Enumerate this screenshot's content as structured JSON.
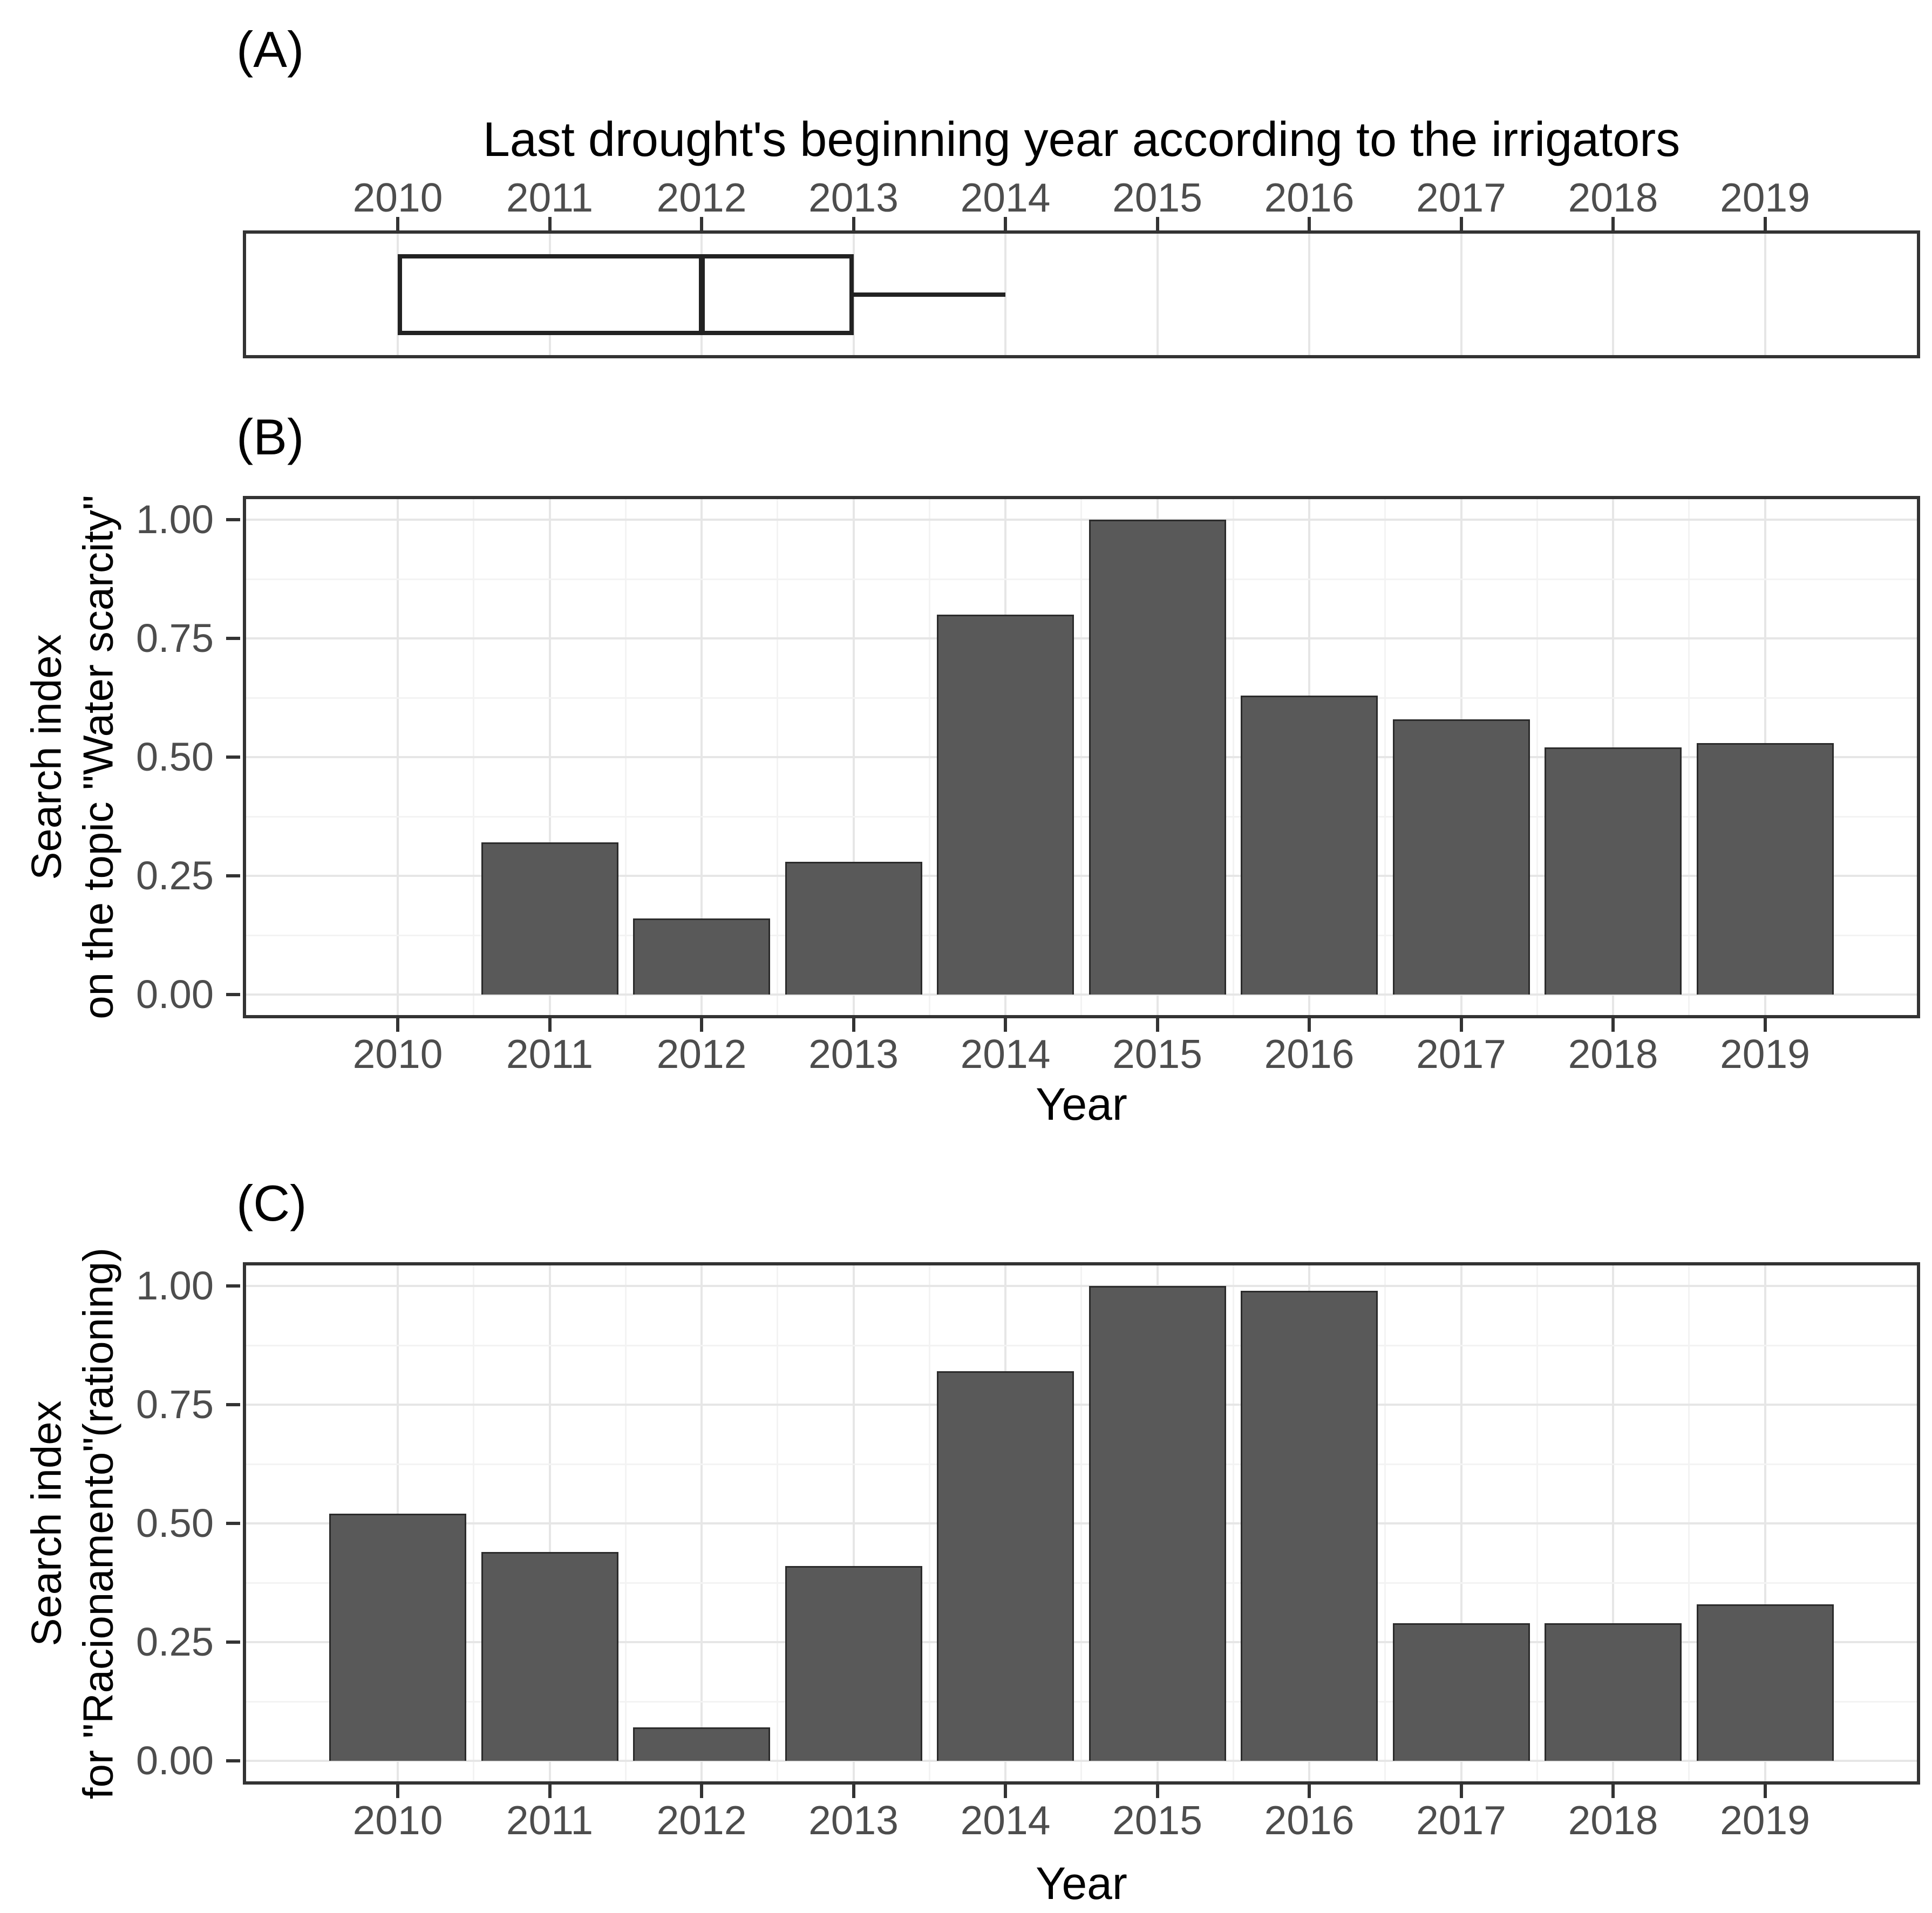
{
  "figure_type": "three-panel statistical figure (ggplot style)",
  "colors": {
    "background": "#ffffff",
    "bar_fill": "#595959",
    "bar_border": "#2b2b2b",
    "panel_border": "#333333",
    "grid_major": "#e6e6e6",
    "grid_minor": "#f3f3f3",
    "tick_color": "#333333",
    "axis_text": "#4d4d4d",
    "title_text": "#000000",
    "box_stroke": "#222222"
  },
  "panels": {
    "a": {
      "tag": "(A)",
      "title": "Last drought's beginning year according to the irrigators"
    },
    "b": {
      "tag": "(B)",
      "ylabel_line1": "Search index",
      "ylabel_line2": "on the topic \"Water scarcity\"",
      "xlabel": "Year"
    },
    "c": {
      "tag": "(C)",
      "ylabel_line1": "Search index",
      "ylabel_line2": "for \"Racionamento\"(rationing)",
      "xlabel": "Year"
    }
  },
  "chart_data": [
    {
      "type": "boxplot",
      "panel": "A",
      "title": "Last drought's beginning year according to the irrigators",
      "orientation": "horizontal",
      "axis_position": "top",
      "x_ticks": [
        2010,
        2011,
        2012,
        2013,
        2014,
        2015,
        2016,
        2017,
        2018,
        2019
      ],
      "xlim": [
        2009.5,
        2019.5
      ],
      "box": {
        "whisker_low": 2010,
        "q1": 2010,
        "median": 2012,
        "q3": 2013,
        "whisker_high": 2014
      },
      "grid": "major-vertical-only",
      "legend": "none"
    },
    {
      "type": "bar",
      "panel": "B",
      "categories": [
        2010,
        2011,
        2012,
        2013,
        2014,
        2015,
        2016,
        2017,
        2018,
        2019
      ],
      "values": [
        0,
        0.32,
        0.16,
        0.28,
        0.8,
        1.0,
        0.63,
        0.58,
        0.52,
        0.53
      ],
      "xlabel": "Year",
      "ylabel": "Search index on the topic \"Water scarcity\"",
      "ytick_values": [
        0,
        0.25,
        0.5,
        0.75,
        1.0
      ],
      "ytick_labels": [
        "0.00",
        "0.25",
        "0.50",
        "0.75",
        "1.00"
      ],
      "ylim": [
        0,
        1.05
      ],
      "grid": "major+minor",
      "legend": "none"
    },
    {
      "type": "bar",
      "panel": "C",
      "categories": [
        2010,
        2011,
        2012,
        2013,
        2014,
        2015,
        2016,
        2017,
        2018,
        2019
      ],
      "values": [
        0.52,
        0.44,
        0.07,
        0.41,
        0.82,
        1.0,
        0.99,
        0.29,
        0.29,
        0.33
      ],
      "xlabel": "Year",
      "ylabel": "Search index for \"Racionamento\"(rationing)",
      "ytick_values": [
        0,
        0.25,
        0.5,
        0.75,
        1.0
      ],
      "ytick_labels": [
        "0.00",
        "0.25",
        "0.50",
        "0.75",
        "1.00"
      ],
      "ylim": [
        0,
        1.05
      ],
      "grid": "major+minor",
      "legend": "none"
    }
  ]
}
